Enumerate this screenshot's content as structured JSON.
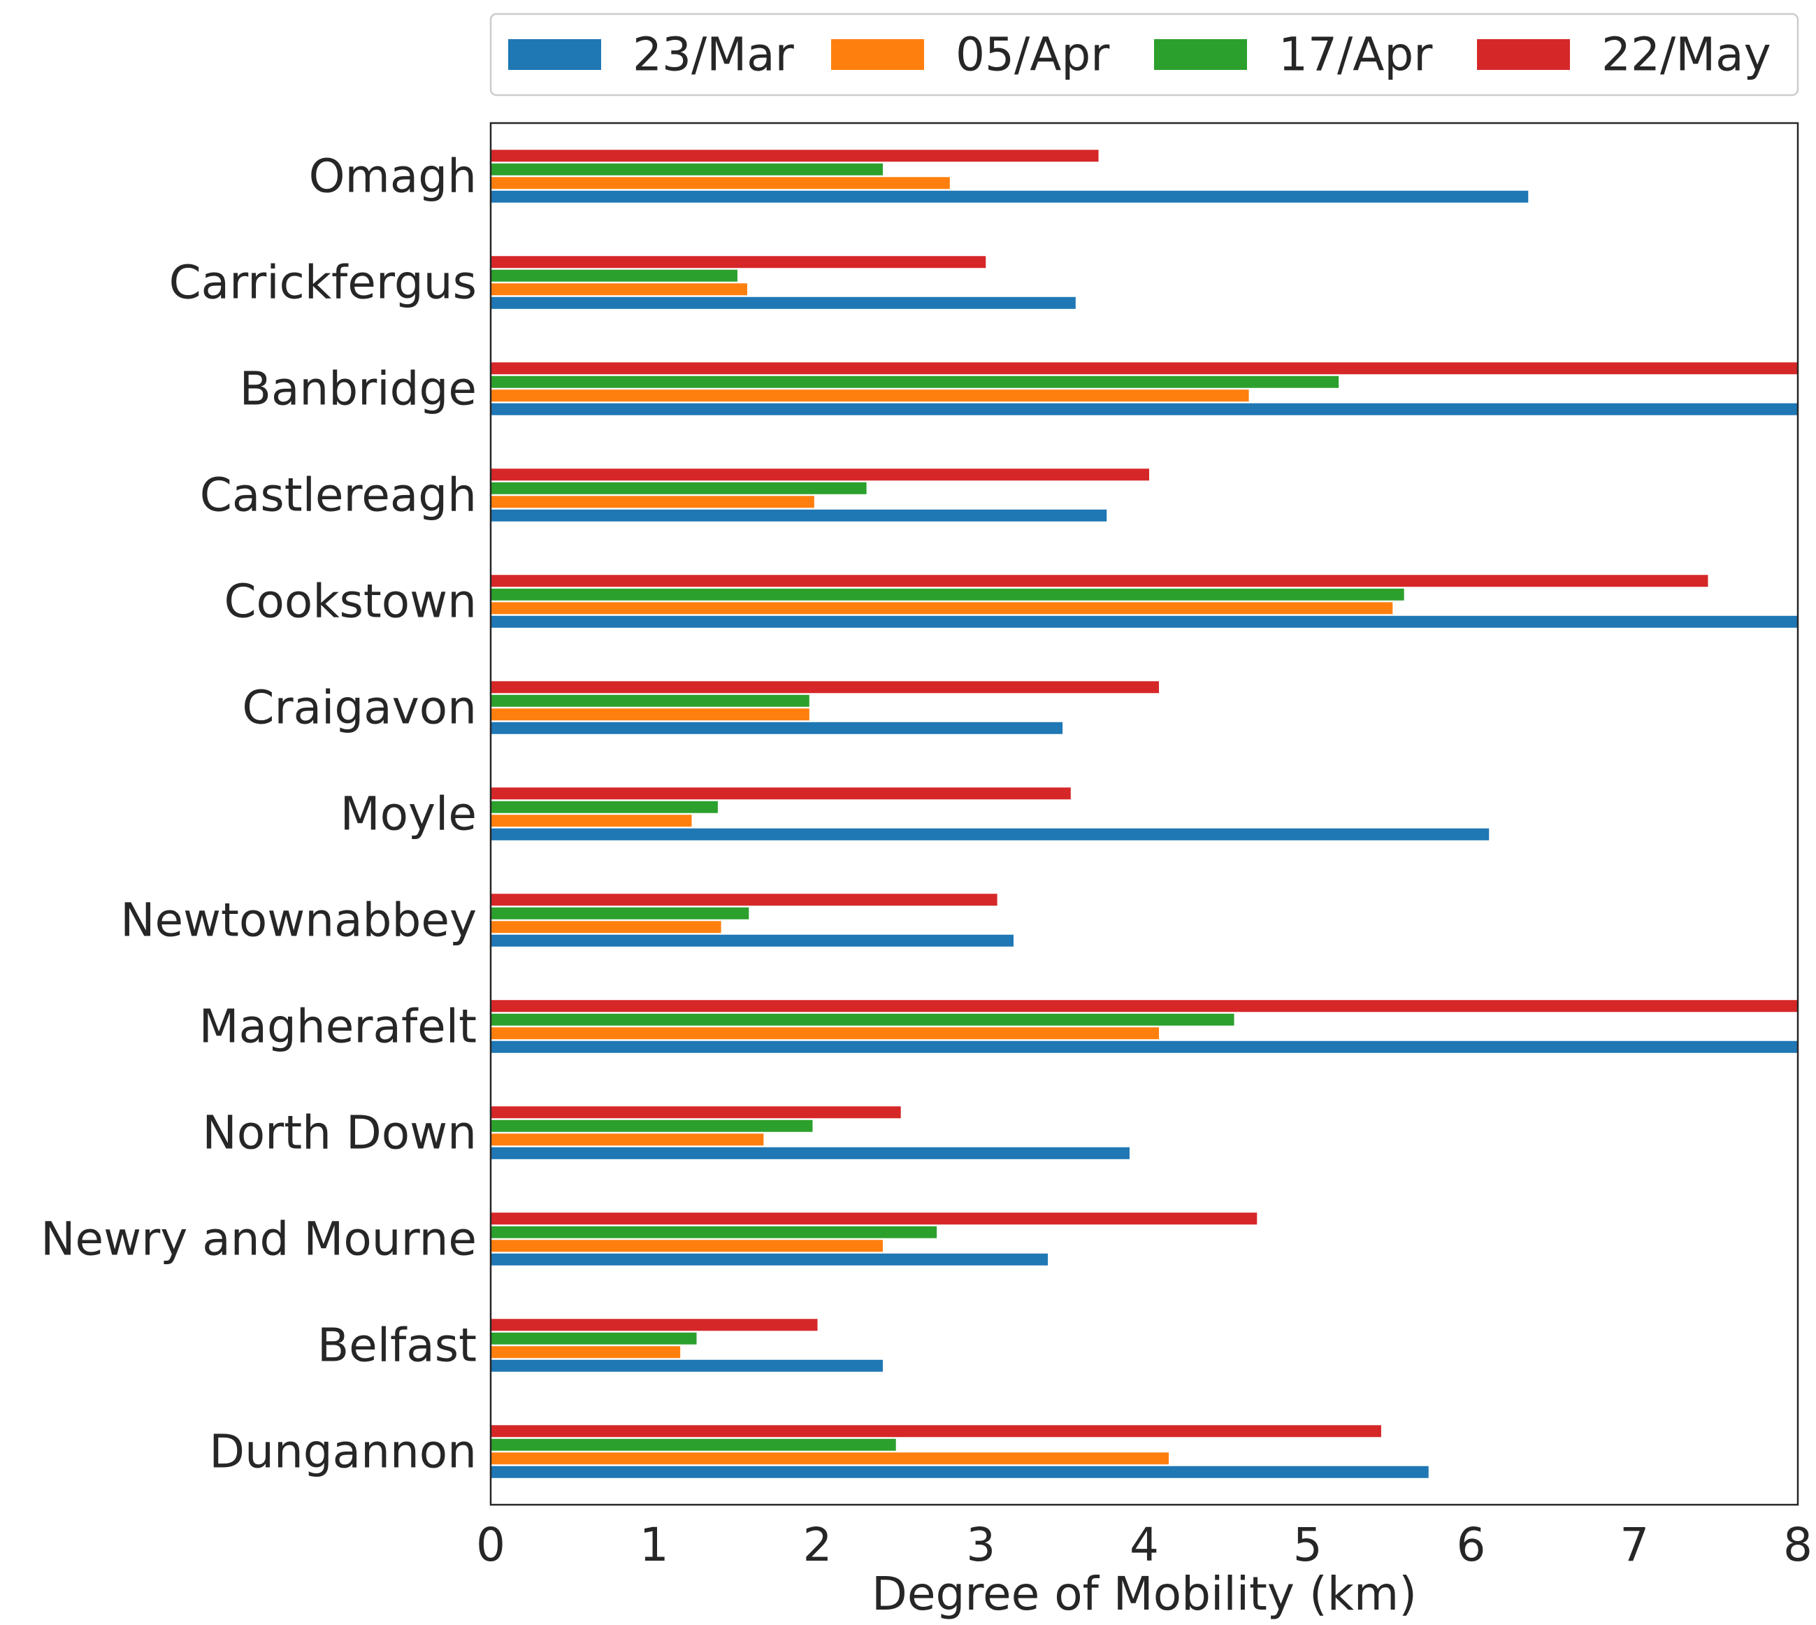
{
  "chart_data": {
    "type": "bar",
    "orientation": "horizontal",
    "xlabel": "Degree of Mobility (km)",
    "ylabel": "",
    "xlim": [
      0,
      8
    ],
    "xticks": [
      "0",
      "1",
      "2",
      "3",
      "4",
      "5",
      "6",
      "7",
      "8"
    ],
    "grid": false,
    "legend_position": "top-right, outside plot",
    "categories": [
      "Omagh",
      "Carrickfergus",
      "Banbridge",
      "Castlereagh",
      "Cookstown",
      "Craigavon",
      "Moyle",
      "Newtownabbey",
      "Magherafelt",
      "North Down",
      "Newry and Mourne",
      "Belfast",
      "Dungannon"
    ],
    "series": [
      {
        "name": "23/Mar",
        "color": "#1f77b4",
        "values": [
          6.35,
          3.58,
          8.0,
          3.77,
          8.0,
          3.5,
          6.11,
          3.2,
          8.0,
          3.91,
          3.41,
          2.4,
          5.74
        ]
      },
      {
        "name": "05/Apr",
        "color": "#ff7f0e",
        "values": [
          2.81,
          1.57,
          4.64,
          1.98,
          5.52,
          1.95,
          1.23,
          1.41,
          4.09,
          1.67,
          2.4,
          1.16,
          4.15
        ]
      },
      {
        "name": "17/Apr",
        "color": "#2ca02c",
        "values": [
          2.4,
          1.51,
          5.19,
          2.3,
          5.59,
          1.95,
          1.39,
          1.58,
          4.55,
          1.97,
          2.73,
          1.26,
          2.48
        ]
      },
      {
        "name": "22/May",
        "color": "#d62728",
        "values": [
          3.72,
          3.03,
          8.0,
          4.03,
          7.45,
          4.09,
          3.55,
          3.1,
          8.0,
          2.51,
          4.69,
          2.0,
          5.45
        ]
      }
    ]
  }
}
